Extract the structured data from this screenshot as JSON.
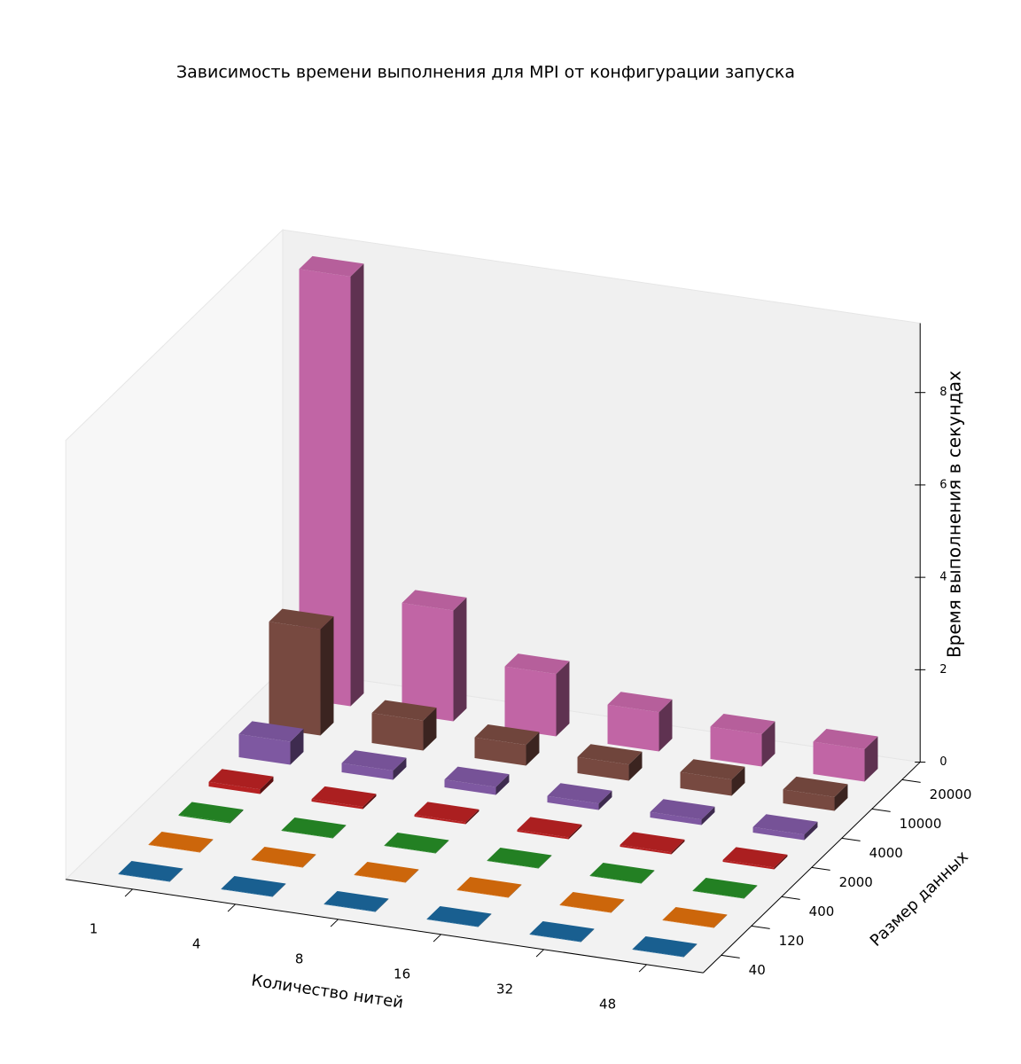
{
  "chart_data": {
    "type": "bar3d",
    "title": "Зависимость времени выполнения для MPI от конфигурации запуска",
    "x_label": "Количество нитей",
    "y_label": "Размер данных",
    "z_label": "Время выполнения в секундах",
    "categories": [
      "1",
      "4",
      "8",
      "16",
      "32",
      "48"
    ],
    "series": [
      {
        "name": "40",
        "color": "#1f77b4",
        "values": [
          0.01,
          0.01,
          0.01,
          0.01,
          0.01,
          0.01
        ]
      },
      {
        "name": "120",
        "color": "#ff7f0e",
        "values": [
          0.01,
          0.01,
          0.01,
          0.01,
          0.01,
          0.01
        ]
      },
      {
        "name": "400",
        "color": "#2ca02c",
        "values": [
          0.02,
          0.01,
          0.01,
          0.01,
          0.01,
          0.01
        ]
      },
      {
        "name": "2000",
        "color": "#d62728",
        "values": [
          0.1,
          0.05,
          0.04,
          0.04,
          0.04,
          0.04
        ]
      },
      {
        "name": "4000",
        "color": "#9467bd",
        "values": [
          0.5,
          0.2,
          0.17,
          0.14,
          0.12,
          0.12
        ]
      },
      {
        "name": "10000",
        "color": "#8c564b",
        "values": [
          2.3,
          0.65,
          0.45,
          0.35,
          0.35,
          0.3
        ]
      },
      {
        "name": "20000",
        "color": "#e377c2",
        "values": [
          9.3,
          2.4,
          1.35,
          0.85,
          0.7,
          0.7
        ]
      }
    ],
    "zlim": [
      0,
      9.5
    ],
    "zticks": [
      0,
      2,
      4,
      6,
      8
    ]
  }
}
